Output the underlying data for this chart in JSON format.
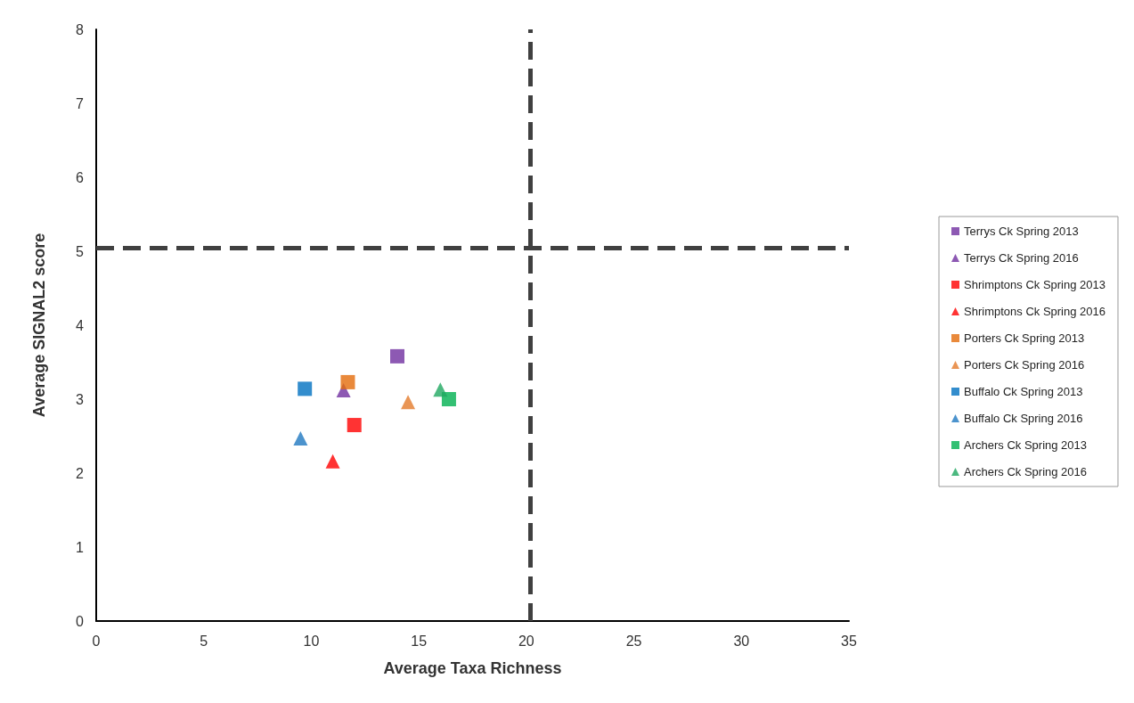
{
  "chart_data": {
    "type": "scatter",
    "xlabel": "Average Taxa Richness",
    "ylabel": "Average SIGNAL2 score",
    "xlim": [
      0,
      35
    ],
    "xticks": [
      0,
      5,
      10,
      15,
      20,
      25,
      30,
      35
    ],
    "ylim": [
      0,
      8
    ],
    "yticks": [
      0,
      1,
      2,
      3,
      4,
      5,
      6,
      7,
      8
    ],
    "grid": false,
    "legend": "right",
    "series": [
      {
        "name": "Terrys Ck Spring 2013",
        "color": "#7030a0",
        "marker": "square",
        "x": [
          14.0
        ],
        "values": [
          3.58
        ]
      },
      {
        "name": "Terrys Ck Spring 2016",
        "color": "#7030a0",
        "marker": "triangle",
        "x": [
          11.5
        ],
        "values": [
          3.12
        ]
      },
      {
        "name": "Shrimptons Ck Spring 2013",
        "color": "#ff0000",
        "marker": "square",
        "x": [
          12.0
        ],
        "values": [
          2.65
        ]
      },
      {
        "name": "Shrimptons Ck Spring 2016",
        "color": "#ff0000",
        "marker": "triangle",
        "x": [
          11.0
        ],
        "values": [
          2.16
        ]
      },
      {
        "name": "Porters Ck Spring 2013",
        "color": "#e36c0a",
        "marker": "square",
        "x": [
          11.7
        ],
        "values": [
          3.23
        ]
      },
      {
        "name": "Porters Ck Spring 2016",
        "color": "#e47b2a",
        "marker": "triangle",
        "x": [
          14.5
        ],
        "values": [
          2.96
        ]
      },
      {
        "name": "Buffalo Ck Spring 2013",
        "color": "#0070c0",
        "marker": "square",
        "x": [
          9.7
        ],
        "values": [
          3.14
        ]
      },
      {
        "name": "Buffalo Ck Spring 2016",
        "color": "#1f78c0",
        "marker": "triangle",
        "x": [
          9.5
        ],
        "values": [
          2.47
        ]
      },
      {
        "name": "Archers Ck Spring 2013",
        "color": "#00b050",
        "marker": "square",
        "x": [
          16.4
        ],
        "values": [
          3.0
        ]
      },
      {
        "name": "Archers Ck Spring 2016",
        "color": "#1fa860",
        "marker": "triangle",
        "x": [
          16.0
        ],
        "values": [
          3.13
        ]
      }
    ],
    "ref_lines": [
      {
        "axis": "x",
        "value": 20.2,
        "color": "#404040",
        "line_style": "dashed"
      },
      {
        "axis": "y",
        "value": 5.05,
        "color": "#404040",
        "line_style": "dashed"
      }
    ]
  }
}
